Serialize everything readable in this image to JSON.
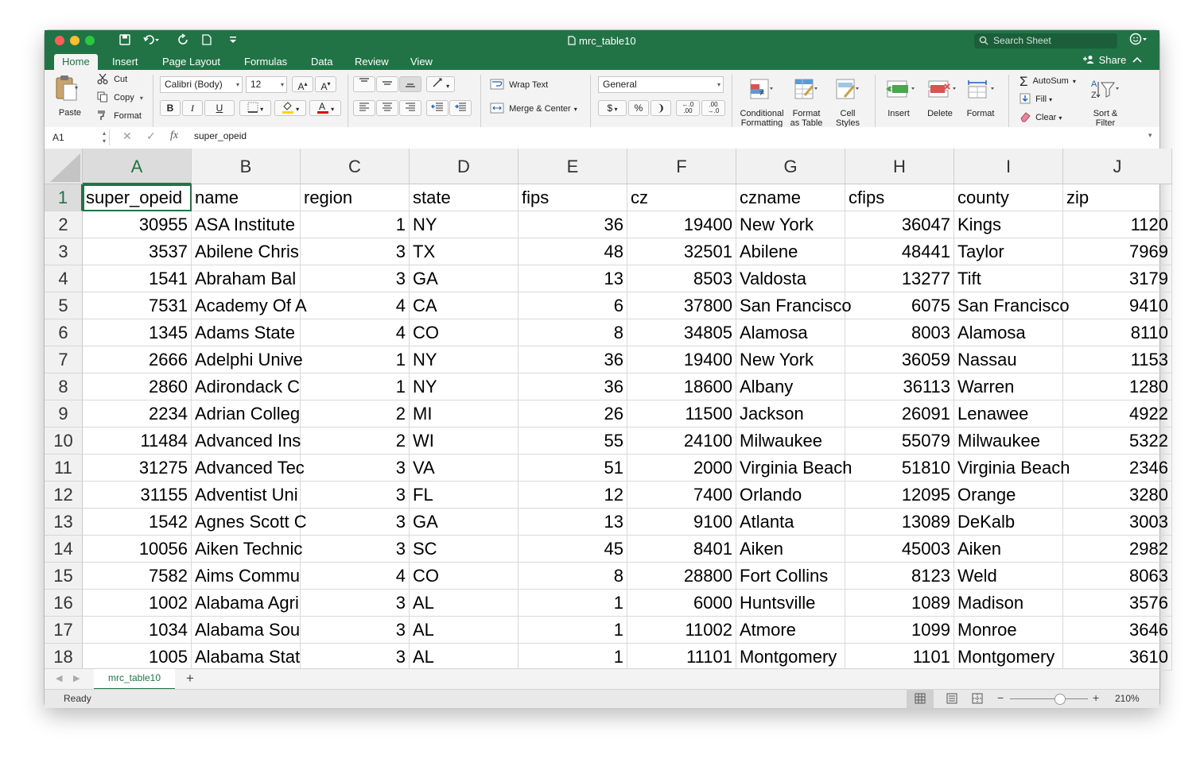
{
  "window": {
    "title": "mrc_table10",
    "search_placeholder": "Search Sheet",
    "share_label": "Share"
  },
  "tabs": [
    "Home",
    "Insert",
    "Page Layout",
    "Formulas",
    "Data",
    "Review",
    "View"
  ],
  "ribbon": {
    "paste": "Paste",
    "cut": "Cut",
    "copy": "Copy",
    "format_painter": "Format",
    "font_name": "Calibri (Body)",
    "font_size": "12",
    "bold": "B",
    "italic": "I",
    "underline": "U",
    "wrap_text": "Wrap Text",
    "merge_center": "Merge & Center",
    "number_format": "General",
    "conditional_formatting": "Conditional\nFormatting",
    "format_as_table": "Format\nas Table",
    "cell_styles": "Cell\nStyles",
    "insert": "Insert",
    "delete": "Delete",
    "format": "Format",
    "autosum": "AutoSum",
    "fill": "Fill",
    "clear": "Clear",
    "sort_filter": "Sort &\nFilter"
  },
  "formula_bar": {
    "name_box": "A1",
    "fx": "fx",
    "content": "super_opeid"
  },
  "columns": [
    "A",
    "B",
    "C",
    "D",
    "E",
    "F",
    "G",
    "H",
    "I",
    "J"
  ],
  "header_row": [
    "super_opeid",
    "name",
    "region",
    "state",
    "fips",
    "cz",
    "czname",
    "cfips",
    "county",
    "zip"
  ],
  "rows": [
    [
      "30955",
      "ASA Institute",
      "1",
      "NY",
      "36",
      "19400",
      "New York",
      "36047",
      "Kings",
      "1120"
    ],
    [
      "3537",
      "Abilene Chris",
      "3",
      "TX",
      "48",
      "32501",
      "Abilene",
      "48441",
      "Taylor",
      "7969"
    ],
    [
      "1541",
      "Abraham Bal",
      "3",
      "GA",
      "13",
      "8503",
      "Valdosta",
      "13277",
      "Tift",
      "3179"
    ],
    [
      "7531",
      "Academy Of A",
      "4",
      "CA",
      "6",
      "37800",
      "San Francisco",
      "6075",
      "San Francisco",
      "9410"
    ],
    [
      "1345",
      "Adams State",
      "4",
      "CO",
      "8",
      "34805",
      "Alamosa",
      "8003",
      "Alamosa",
      "8110"
    ],
    [
      "2666",
      "Adelphi Unive",
      "1",
      "NY",
      "36",
      "19400",
      "New York",
      "36059",
      "Nassau",
      "1153"
    ],
    [
      "2860",
      "Adirondack C",
      "1",
      "NY",
      "36",
      "18600",
      "Albany",
      "36113",
      "Warren",
      "1280"
    ],
    [
      "2234",
      "Adrian Colleg",
      "2",
      "MI",
      "26",
      "11500",
      "Jackson",
      "26091",
      "Lenawee",
      "4922"
    ],
    [
      "11484",
      "Advanced Ins",
      "2",
      "WI",
      "55",
      "24100",
      "Milwaukee",
      "55079",
      "Milwaukee",
      "5322"
    ],
    [
      "31275",
      "Advanced Tec",
      "3",
      "VA",
      "51",
      "2000",
      "Virginia Beach",
      "51810",
      "Virginia Beach",
      "2346"
    ],
    [
      "31155",
      "Adventist Uni",
      "3",
      "FL",
      "12",
      "7400",
      "Orlando",
      "12095",
      "Orange",
      "3280"
    ],
    [
      "1542",
      "Agnes Scott C",
      "3",
      "GA",
      "13",
      "9100",
      "Atlanta",
      "13089",
      "DeKalb",
      "3003"
    ],
    [
      "10056",
      "Aiken Technic",
      "3",
      "SC",
      "45",
      "8401",
      "Aiken",
      "45003",
      "Aiken",
      "2982"
    ],
    [
      "7582",
      "Aims Commu",
      "4",
      "CO",
      "8",
      "28800",
      "Fort Collins",
      "8123",
      "Weld",
      "8063"
    ],
    [
      "1002",
      "Alabama Agri",
      "3",
      "AL",
      "1",
      "6000",
      "Huntsville",
      "1089",
      "Madison",
      "3576"
    ],
    [
      "1034",
      "Alabama Sou",
      "3",
      "AL",
      "1",
      "11002",
      "Atmore",
      "1099",
      "Monroe",
      "3646"
    ],
    [
      "1005",
      "Alabama Stat",
      "3",
      "AL",
      "1",
      "11101",
      "Montgomery",
      "1101",
      "Montgomery",
      "3610"
    ]
  ],
  "sheet": {
    "name": "mrc_table10",
    "add": "+"
  },
  "status": {
    "ready": "Ready",
    "zoom": "210%"
  }
}
